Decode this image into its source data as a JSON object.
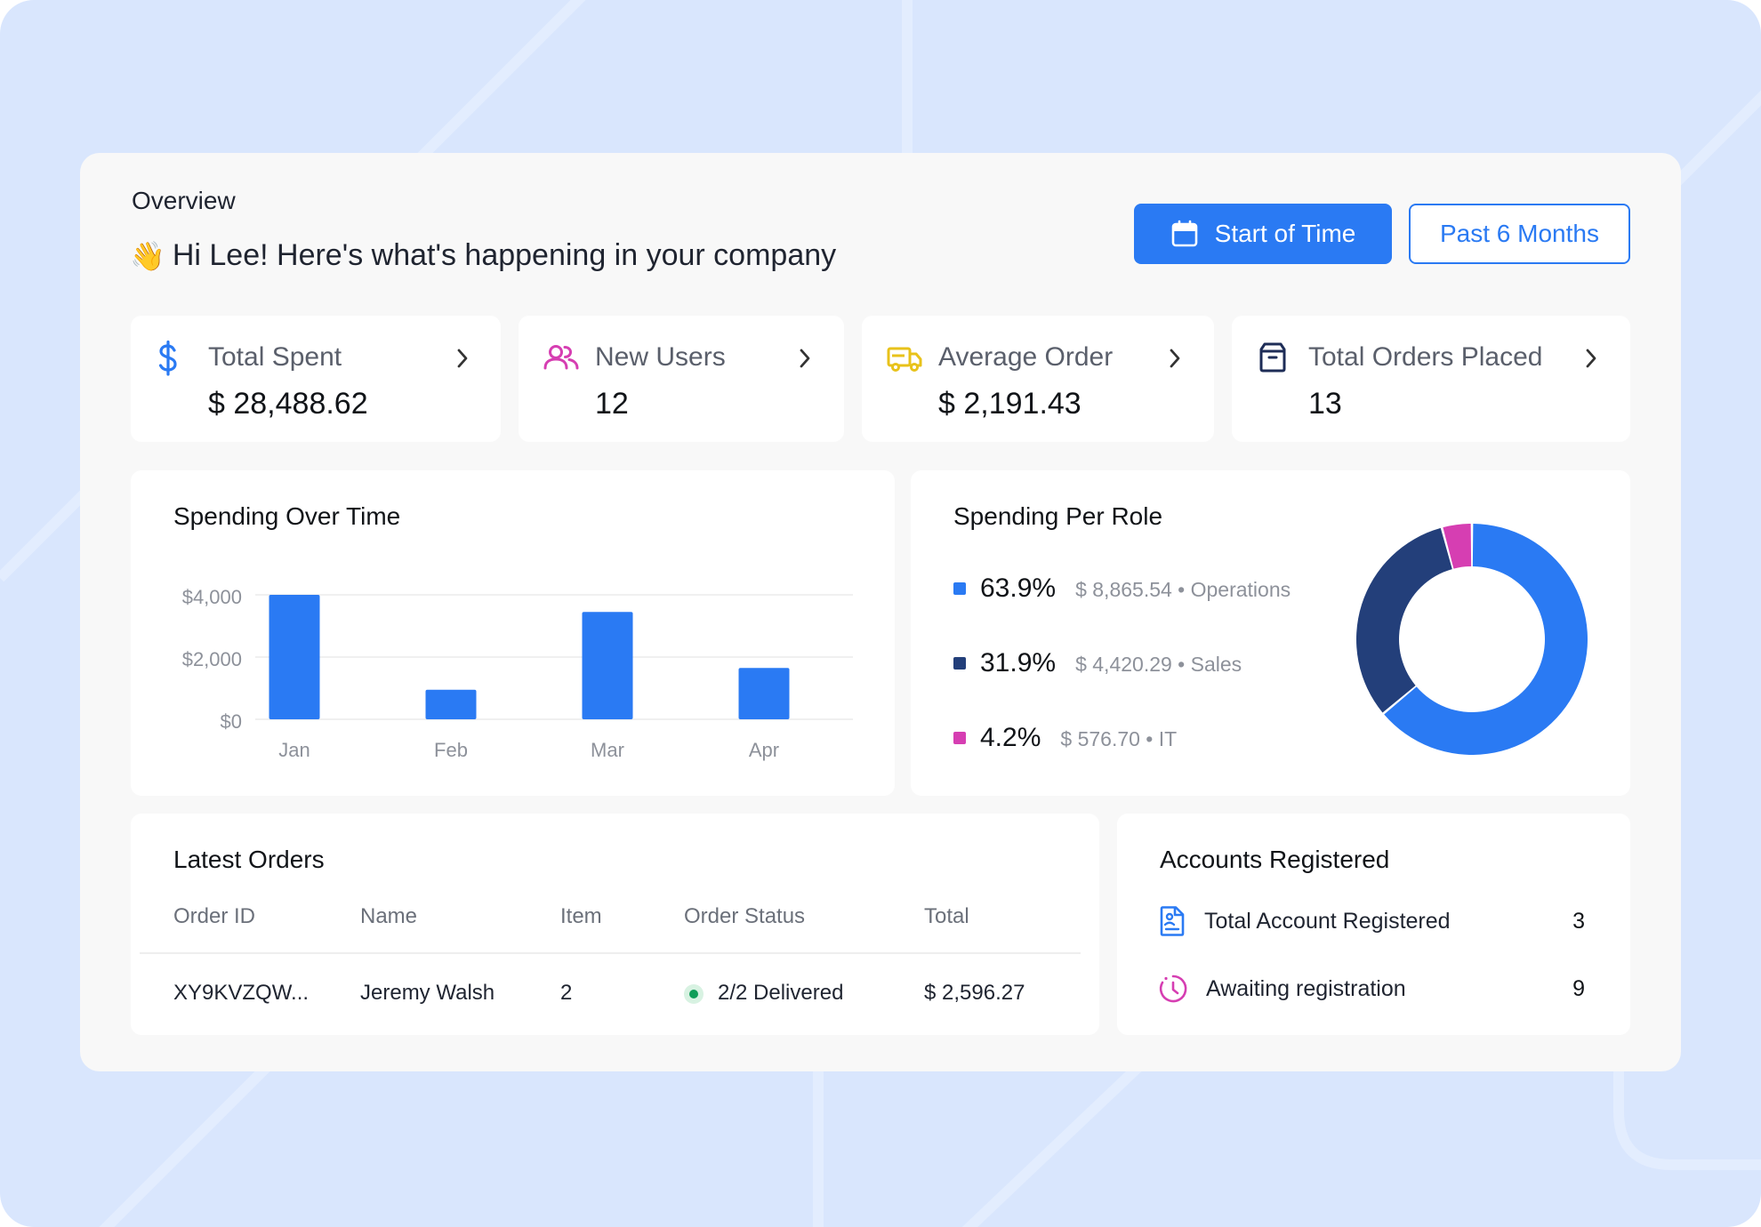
{
  "header": {
    "section_label": "Overview",
    "greeting_emoji": "👋",
    "greeting": "Hi Lee! Here's what's happening in your company",
    "primary_button": "Start of Time",
    "secondary_button": "Past 6 Months"
  },
  "stats": [
    {
      "label": "Total Spent",
      "value": "$ 28,488.62",
      "icon": "dollar-icon"
    },
    {
      "label": "New Users",
      "value": "12",
      "icon": "users-icon"
    },
    {
      "label": "Average Order",
      "value": "$ 2,191.43",
      "icon": "truck-icon"
    },
    {
      "label": "Total Orders Placed",
      "value": "13",
      "icon": "box-icon"
    }
  ],
  "spending_over_time": {
    "title": "Spending Over Time",
    "y_ticks": [
      "$4,000",
      "$2,000",
      "$0"
    ]
  },
  "chart_data": {
    "type": "bar",
    "categories": [
      "Jan",
      "Feb",
      "Mar",
      "Apr"
    ],
    "values": [
      4000,
      950,
      3450,
      1650
    ],
    "title": "Spending Over Time",
    "xlabel": "",
    "ylabel": "",
    "ylim": [
      0,
      4000
    ],
    "grid": true,
    "color": "#2a7af3"
  },
  "spending_per_role": {
    "title": "Spending Per Role",
    "roles": [
      {
        "pct": "63.9%",
        "detail": "$ 8,865.54 • Operations",
        "share": 0.639,
        "color": "#2a7af3"
      },
      {
        "pct": "31.9%",
        "detail": "$ 4,420.29 • Sales",
        "share": 0.319,
        "color": "#233f7a"
      },
      {
        "pct": "4.2%",
        "detail": "$ 576.70 • IT",
        "share": 0.042,
        "color": "#d63eb2"
      }
    ]
  },
  "latest_orders": {
    "title": "Latest Orders",
    "columns": [
      "Order ID",
      "Name",
      "Item",
      "Order Status",
      "Total"
    ],
    "rows": [
      {
        "order_id": "XY9KVZQW...",
        "name": "Jeremy Walsh",
        "item": "2",
        "status": "2/2 Delivered",
        "total": "$ 2,596.27"
      }
    ]
  },
  "accounts": {
    "title": "Accounts Registered",
    "items": [
      {
        "label": "Total Account Registered",
        "count": "3",
        "icon": "document-user-icon"
      },
      {
        "label": "Awaiting registration",
        "count": "9",
        "icon": "clock-pending-icon"
      }
    ]
  },
  "colors": {
    "accent": "#2a7af3",
    "pink": "#d63eb2",
    "yellow": "#e8c21a",
    "navy": "#233f7a",
    "background": "#d9e6fd"
  }
}
